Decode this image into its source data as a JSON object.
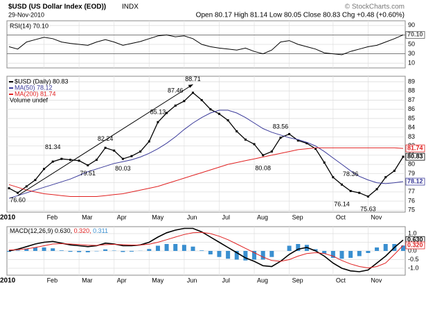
{
  "chart_data": {
    "type": "stock",
    "title": "$USD (US Dollar Index (EOD))",
    "exchange": "INDX",
    "date": "29-Nov-2010",
    "quote": "Open 80.17 High 81.14 Low 80.05 Close 80.83 Chg +0.48 (+0.60%)",
    "credit": "© StockCharts.com",
    "year_label": "2010",
    "categories": [
      null,
      null,
      null,
      null,
      "Feb",
      null,
      null,
      null,
      "Mar",
      null,
      null,
      null,
      "Apr",
      null,
      null,
      null,
      "May",
      null,
      null,
      null,
      "Jun",
      null,
      null,
      null,
      "Jul",
      null,
      null,
      null,
      "Aug",
      null,
      null,
      null,
      "Sep",
      null,
      null,
      null,
      null,
      "Oct",
      null,
      null,
      null,
      "Nov",
      null,
      null,
      null,
      null
    ],
    "rsi": {
      "legend": "RSI(14) 70.10",
      "ylim": [
        0,
        100
      ],
      "yticks": [
        90,
        70,
        50,
        30,
        10
      ],
      "reference_lines": [
        70,
        30
      ],
      "tag": "70.10",
      "color": "#000000",
      "values": [
        45,
        40,
        55,
        60,
        65,
        62,
        55,
        52,
        50,
        48,
        55,
        60,
        55,
        48,
        52,
        56,
        62,
        68,
        70,
        66,
        68,
        62,
        50,
        45,
        42,
        40,
        38,
        42,
        35,
        30,
        38,
        55,
        58,
        50,
        45,
        40,
        32,
        30,
        28,
        35,
        40,
        45,
        48,
        55,
        62,
        70.1
      ]
    },
    "price": {
      "ylim": [
        74.8,
        89.6
      ],
      "yticks": [
        75,
        76,
        77,
        78,
        79,
        80,
        81,
        82,
        83,
        84,
        85,
        86,
        87,
        88,
        89
      ],
      "volume_legend": "Volume undef",
      "series": [
        {
          "name": "$USD (Daily) 80.83",
          "tag": "80.83",
          "color": "#000000",
          "values": [
            77.4,
            76.9,
            77.6,
            78.3,
            79.5,
            80.3,
            80.6,
            80.5,
            80.4,
            79.9,
            80.5,
            81.8,
            81.5,
            80.6,
            80.9,
            81.4,
            82.5,
            84.6,
            85.6,
            86.4,
            86.9,
            87.8,
            87.0,
            86.0,
            85.5,
            84.8,
            83.6,
            82.7,
            82.2,
            81.0,
            81.4,
            82.9,
            83.3,
            82.6,
            82.3,
            81.7,
            80.2,
            78.6,
            77.8,
            77.1,
            76.9,
            76.5,
            77.3,
            78.6,
            79.3,
            80.83
          ]
        },
        {
          "name": "MA(50) 78.12",
          "tag": "78.12",
          "color": "#3a3a9a",
          "values": [
            76.3,
            76.6,
            76.9,
            77.2,
            77.5,
            77.8,
            78.1,
            78.4,
            78.8,
            79.2,
            79.5,
            79.8,
            80.1,
            80.3,
            80.5,
            80.8,
            81.2,
            81.7,
            82.3,
            83.0,
            83.8,
            84.5,
            85.1,
            85.6,
            85.9,
            85.9,
            85.6,
            85.1,
            84.5,
            83.9,
            83.5,
            83.2,
            82.9,
            82.7,
            82.4,
            82.0,
            81.4,
            80.7,
            80.0,
            79.3,
            78.7,
            78.3,
            78.0,
            77.9,
            78.0,
            78.12
          ]
        },
        {
          "name": "MA(200) 81.74",
          "tag": "81.74",
          "color": "#e02020",
          "values": [
            77.8,
            77.5,
            77.2,
            77.0,
            76.8,
            76.7,
            76.6,
            76.5,
            76.5,
            76.5,
            76.5,
            76.6,
            76.7,
            76.8,
            77.0,
            77.2,
            77.4,
            77.6,
            77.9,
            78.2,
            78.5,
            78.8,
            79.1,
            79.4,
            79.7,
            80.0,
            80.2,
            80.4,
            80.6,
            80.8,
            81.0,
            81.2,
            81.4,
            81.6,
            81.7,
            81.8,
            81.8,
            81.8,
            81.8,
            81.8,
            81.8,
            81.8,
            81.8,
            81.8,
            81.8,
            81.74
          ]
        }
      ],
      "annotations": [
        {
          "label": "76.60",
          "index": 1,
          "value": 76.6
        },
        {
          "label": "81.34",
          "index": 5,
          "value": 81.34
        },
        {
          "label": "79.51",
          "index": 9,
          "value": 79.51
        },
        {
          "label": "82.24",
          "index": 11,
          "value": 82.24
        },
        {
          "label": "80.03",
          "index": 13,
          "value": 80.03
        },
        {
          "label": "85.13",
          "index": 17,
          "value": 85.13
        },
        {
          "label": "87.46",
          "index": 19,
          "value": 87.46
        },
        {
          "label": "88.71",
          "index": 21,
          "value": 88.71
        },
        {
          "label": "80.08",
          "index": 29,
          "value": 80.08
        },
        {
          "label": "83.56",
          "index": 31,
          "value": 83.56
        },
        {
          "label": "76.14",
          "index": 38,
          "value": 76.14
        },
        {
          "label": "78.36",
          "index": 39,
          "value": 78.36
        },
        {
          "label": "75.63",
          "index": 41,
          "value": 75.63
        }
      ]
    },
    "macd": {
      "legend_name": "MACD(12,26,9)",
      "legend_values": [
        "0.630,",
        "0.320,",
        "0.311"
      ],
      "ylim": [
        -1.4,
        1.4
      ],
      "yticks": [
        {
          "value": 1,
          "label": "1.0"
        },
        0.5,
        {
          "value": 0,
          "label": "0.0"
        },
        -0.5,
        {
          "value": -1,
          "label": "-1.0"
        }
      ],
      "series": [
        {
          "tag": "0.630",
          "color": "#000000",
          "values": [
            0.0,
            0.1,
            0.25,
            0.4,
            0.5,
            0.55,
            0.45,
            0.35,
            0.3,
            0.25,
            0.3,
            0.45,
            0.4,
            0.3,
            0.3,
            0.35,
            0.5,
            0.8,
            1.05,
            1.2,
            1.3,
            1.3,
            1.1,
            0.8,
            0.5,
            0.2,
            -0.1,
            -0.4,
            -0.6,
            -0.85,
            -0.9,
            -0.6,
            -0.2,
            0.1,
            0.2,
            0.0,
            -0.3,
            -0.7,
            -1.0,
            -1.15,
            -1.2,
            -1.1,
            -0.7,
            -0.3,
            0.2,
            0.63
          ]
        },
        {
          "tag": "0.320",
          "color": "#e02020",
          "values": [
            0.05,
            0.07,
            0.12,
            0.2,
            0.3,
            0.4,
            0.42,
            0.4,
            0.37,
            0.33,
            0.32,
            0.36,
            0.38,
            0.36,
            0.34,
            0.34,
            0.39,
            0.5,
            0.65,
            0.8,
            0.95,
            1.05,
            1.07,
            1.0,
            0.85,
            0.65,
            0.4,
            0.15,
            -0.1,
            -0.35,
            -0.55,
            -0.6,
            -0.5,
            -0.3,
            -0.15,
            -0.1,
            -0.15,
            -0.3,
            -0.55,
            -0.75,
            -0.9,
            -0.98,
            -0.9,
            -0.7,
            -0.2,
            0.32
          ]
        }
      ],
      "histogram": {
        "color": "#3a8fd0",
        "values": [
          -0.05,
          0.03,
          0.13,
          0.2,
          0.2,
          0.15,
          0.03,
          -0.05,
          -0.07,
          -0.08,
          -0.02,
          0.09,
          0.02,
          -0.06,
          -0.04,
          0.01,
          0.11,
          0.3,
          0.4,
          0.4,
          0.35,
          0.25,
          0.03,
          -0.2,
          -0.35,
          -0.45,
          -0.5,
          -0.55,
          -0.5,
          -0.5,
          -0.35,
          0.0,
          0.3,
          0.4,
          0.35,
          0.1,
          -0.15,
          -0.4,
          -0.45,
          -0.4,
          -0.3,
          -0.12,
          0.2,
          0.4,
          0.4,
          0.311
        ]
      }
    }
  }
}
